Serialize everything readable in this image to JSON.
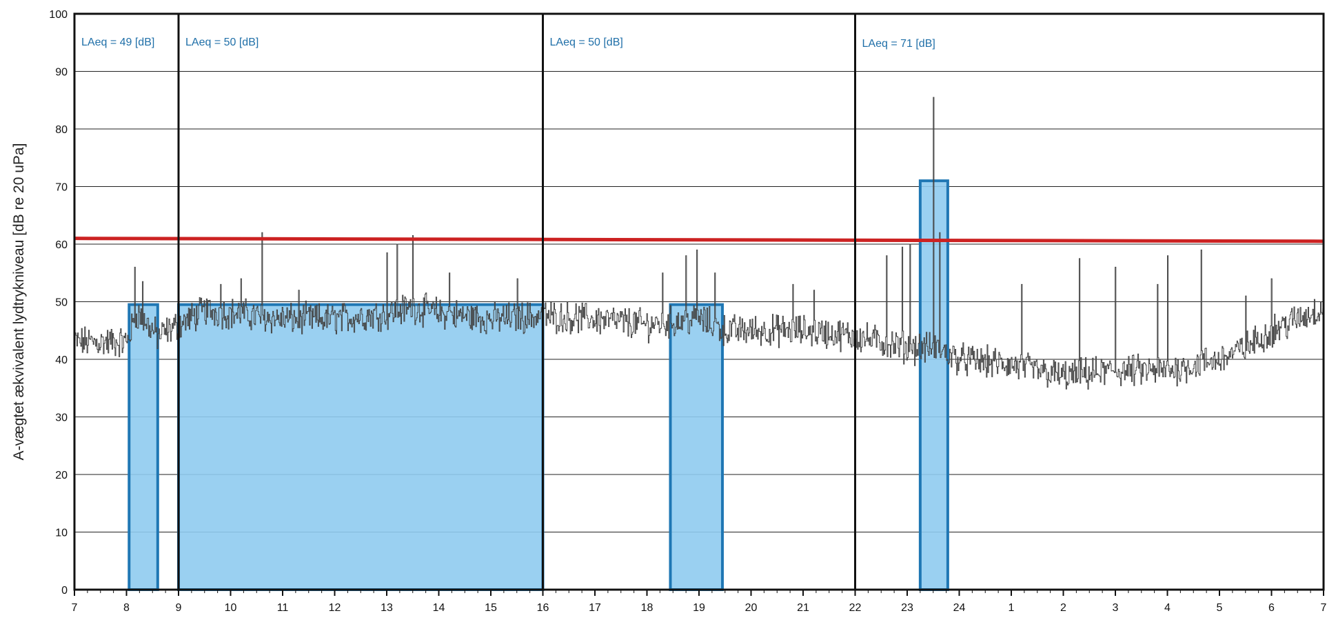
{
  "chart_data": {
    "type": "line",
    "ylabel": "A-vægtet ækvivalent lydtrykniveau [dB re 20 uPa]",
    "xlabel": "",
    "ylim": [
      0,
      100
    ],
    "yticks": [
      0,
      10,
      20,
      30,
      40,
      50,
      60,
      70,
      80,
      90,
      100
    ],
    "x_range_hours": [
      7,
      31
    ],
    "x_tick_labels": [
      "7",
      "8",
      "9",
      "10",
      "11",
      "12",
      "13",
      "14",
      "15",
      "16",
      "17",
      "18",
      "19",
      "20",
      "21",
      "22",
      "23",
      "24",
      "1",
      "2",
      "3",
      "4",
      "5",
      "6",
      "7"
    ],
    "grid": "horizontal",
    "limit_line": {
      "value_start": 61,
      "value_end": 60.5
    },
    "period_dividers": [
      9,
      16,
      22
    ],
    "periods": [
      {
        "label": "LAeq = 49 [dB]",
        "start": 7,
        "end": 9
      },
      {
        "label": "LAeq = 50 [dB]",
        "start": 9,
        "end": 16
      },
      {
        "label": "LAeq = 50 [dB]",
        "start": 16,
        "end": 22
      },
      {
        "label": "LAeq = 71 [dB]",
        "start": 22,
        "end": 31
      }
    ],
    "highlight_bars": [
      {
        "start": 8.05,
        "end": 8.6,
        "value": 49.5
      },
      {
        "start": 9.0,
        "end": 16.0,
        "value": 49.5
      },
      {
        "start": 18.45,
        "end": 19.45,
        "value": 49.5
      },
      {
        "start": 23.25,
        "end": 23.78,
        "value": 71
      }
    ],
    "level_profile": [
      [
        7.0,
        43
      ],
      [
        7.5,
        43
      ],
      [
        8.0,
        43
      ],
      [
        8.2,
        48
      ],
      [
        8.6,
        44
      ],
      [
        9.0,
        46
      ],
      [
        9.5,
        48.5
      ],
      [
        10.0,
        48
      ],
      [
        11.0,
        47
      ],
      [
        12.0,
        47
      ],
      [
        13.0,
        48
      ],
      [
        13.5,
        49
      ],
      [
        14.0,
        48
      ],
      [
        15.0,
        47
      ],
      [
        16.0,
        47.5
      ],
      [
        17.0,
        47
      ],
      [
        18.0,
        46
      ],
      [
        19.0,
        47
      ],
      [
        19.5,
        45
      ],
      [
        20.0,
        45
      ],
      [
        21.0,
        45
      ],
      [
        22.0,
        44
      ],
      [
        22.5,
        43
      ],
      [
        23.0,
        42
      ],
      [
        23.5,
        42
      ],
      [
        24.0,
        40
      ],
      [
        25.0,
        39
      ],
      [
        26.0,
        37
      ],
      [
        27.0,
        38
      ],
      [
        28.0,
        38
      ],
      [
        29.0,
        40
      ],
      [
        29.5,
        42
      ],
      [
        30.0,
        45
      ],
      [
        31.0,
        49
      ]
    ],
    "peaks": [
      [
        8.15,
        56
      ],
      [
        8.3,
        53.5
      ],
      [
        9.8,
        53
      ],
      [
        10.2,
        54
      ],
      [
        10.6,
        62
      ],
      [
        11.3,
        52
      ],
      [
        13.0,
        58.5
      ],
      [
        13.2,
        60
      ],
      [
        13.5,
        61.5
      ],
      [
        14.2,
        55
      ],
      [
        15.5,
        54
      ],
      [
        18.3,
        55
      ],
      [
        18.75,
        58
      ],
      [
        18.95,
        59
      ],
      [
        19.3,
        55
      ],
      [
        20.8,
        53
      ],
      [
        21.2,
        52
      ],
      [
        22.6,
        58
      ],
      [
        22.9,
        59.5
      ],
      [
        23.05,
        60
      ],
      [
        23.5,
        85.5
      ],
      [
        23.62,
        62
      ],
      [
        25.2,
        53
      ],
      [
        26.3,
        57.5
      ],
      [
        27.0,
        56
      ],
      [
        27.8,
        53
      ],
      [
        28.0,
        58
      ],
      [
        28.65,
        59
      ],
      [
        29.5,
        51
      ],
      [
        30.0,
        54
      ]
    ]
  },
  "labels": {
    "period_1": "LAeq = 49 [dB]",
    "period_2": "LAeq = 50 [dB]",
    "period_3": "LAeq = 50 [dB]",
    "period_4": "LAeq = 71 [dB]"
  },
  "colors": {
    "bar_fill": "#8fcbef",
    "bar_stroke": "#1f77b4",
    "limit_line": "#cc2222",
    "trace": "#444444",
    "grid": "#222222",
    "label_text": "#1f6fa8"
  }
}
